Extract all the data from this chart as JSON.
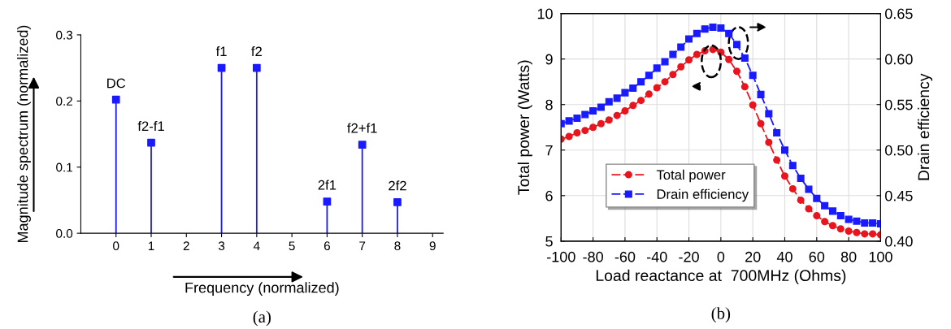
{
  "chart_data": [
    {
      "type": "lollipop",
      "xlabel": "Frequency (normalized)",
      "ylabel": "Magnitude spectrum (normalized)",
      "x": [
        0,
        1,
        3,
        4,
        6,
        7,
        8
      ],
      "series": [
        {
          "color": "#1a1aff",
          "values": [
            0.202,
            0.137,
            0.25,
            0.25,
            0.048,
            0.134,
            0.047
          ]
        }
      ],
      "marker": "square",
      "xlim": [
        -1,
        9.3
      ],
      "xticks": [
        0,
        1,
        2,
        3,
        4,
        5,
        6,
        7,
        8,
        9
      ],
      "ylim": [
        0,
        0.3
      ],
      "yticks": [
        {
          "value": 0,
          "label": "0.0"
        },
        0.1,
        0.2,
        0.3
      ],
      "annotations": [
        {
          "text": "DC",
          "x": 0,
          "y": 0.202
        },
        {
          "text": "f2-f1",
          "x": 1,
          "y": 0.137
        },
        {
          "text": "f1",
          "x": 3,
          "y": 0.25
        },
        {
          "text": "f2",
          "x": 4,
          "y": 0.25
        },
        {
          "text": "2f1",
          "x": 6,
          "y": 0.048
        },
        {
          "text": "f2+f1",
          "x": 7,
          "y": 0.134
        },
        {
          "text": "2f2",
          "x": 8,
          "y": 0.047
        },
        "(a)"
      ]
    },
    {
      "type": "line",
      "xlabel": "Load reactance at  700MHz (Ohms)",
      "ylabel": "Total power (Watts)",
      "y2label": "Drain efficiency",
      "x": [
        -100,
        -95,
        -90,
        -85,
        -80,
        -75,
        -70,
        -65,
        -60,
        -55,
        -50,
        -45,
        -40,
        -35,
        -30,
        -25,
        -20,
        -15,
        -10,
        -5,
        0,
        5,
        10,
        15,
        20,
        25,
        30,
        35,
        40,
        45,
        50,
        55,
        60,
        65,
        70,
        75,
        80,
        85,
        90,
        95,
        100
      ],
      "series": [
        {
          "name": "Total power",
          "color": "#e8141e",
          "marker": "circle",
          "values": [
            7.24,
            7.3,
            7.38,
            7.43,
            7.5,
            7.58,
            7.66,
            7.76,
            7.86,
            7.98,
            8.09,
            8.23,
            8.37,
            8.5,
            8.66,
            8.83,
            8.98,
            9.1,
            9.18,
            9.21,
            9.15,
            8.99,
            8.73,
            8.39,
            7.99,
            7.58,
            7.17,
            6.78,
            6.43,
            6.15,
            5.9,
            5.71,
            5.56,
            5.43,
            5.34,
            5.27,
            5.22,
            5.19,
            5.16,
            5.16,
            5.14
          ]
        },
        {
          "name": "Drain efficiency",
          "color": "#1a1aff",
          "marker": "square",
          "axis": "y2",
          "values": [
            0.529,
            0.532,
            0.535,
            0.539,
            0.543,
            0.547,
            0.553,
            0.557,
            0.563,
            0.568,
            0.575,
            0.582,
            0.59,
            0.597,
            0.605,
            0.613,
            0.622,
            0.628,
            0.633,
            0.635,
            0.634,
            0.628,
            0.616,
            0.601,
            0.582,
            0.561,
            0.54,
            0.519,
            0.5,
            0.483,
            0.469,
            0.457,
            0.447,
            0.439,
            0.433,
            0.428,
            0.424,
            0.422,
            0.42,
            0.42,
            0.419
          ]
        }
      ],
      "line_style": "dashed",
      "grid": true,
      "legend": "bottom left",
      "xlim": [
        -100,
        100
      ],
      "xticks": [
        -100,
        -80,
        -60,
        -40,
        -20,
        0,
        20,
        40,
        60,
        80,
        100
      ],
      "ylim": [
        5,
        10
      ],
      "yticks": [
        5,
        6,
        7,
        8,
        9,
        10
      ],
      "y2lim": [
        0.4,
        0.65
      ],
      "y2ticks": [
        {
          "value": 0.4,
          "label": "0.40"
        },
        0.45,
        {
          "value": 0.5,
          "label": "0.50"
        },
        0.55,
        {
          "value": 0.6,
          "label": "0.60"
        },
        0.65
      ],
      "annotations": [
        "(b)"
      ]
    }
  ]
}
